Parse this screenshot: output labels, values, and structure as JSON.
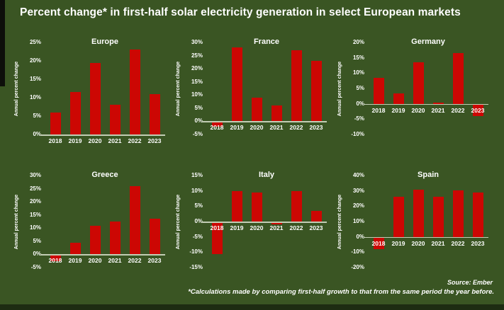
{
  "title": "Percent change* in first-half solar electricity generation in select European markets",
  "footer": {
    "source": "Source: Ember",
    "note": "*Calculations made by comparing first-half growth to that from the same period the year before."
  },
  "colors": {
    "background": "#3a5523",
    "bar": "#cc0703",
    "text": "#ffffff",
    "axis_line": "#c2cdb4"
  },
  "chart_data": {
    "type": "bar",
    "categories": [
      "2018",
      "2019",
      "2020",
      "2021",
      "2022",
      "2023"
    ],
    "ylabel": "Annual percent change",
    "legend": "none",
    "grid": "off",
    "charts": [
      {
        "title": "Europe",
        "ylim": [
          0,
          25
        ],
        "ticks": [
          25,
          20,
          15,
          10,
          5,
          0
        ],
        "values": [
          6,
          11.5,
          19.5,
          8,
          23,
          11
        ]
      },
      {
        "title": "France",
        "ylim": [
          -5,
          30
        ],
        "ticks": [
          30,
          25,
          20,
          15,
          10,
          5,
          0,
          -5
        ],
        "values": [
          -2,
          28,
          9,
          6,
          27,
          23
        ]
      },
      {
        "title": "Germany",
        "ylim": [
          -10,
          20
        ],
        "ticks": [
          20,
          15,
          10,
          5,
          0,
          -5,
          -10
        ],
        "values": [
          8.5,
          3.5,
          13.5,
          0.5,
          16.5,
          -4
        ]
      },
      {
        "title": "Greece",
        "ylim": [
          -5,
          30
        ],
        "ticks": [
          30,
          25,
          20,
          15,
          10,
          5,
          0,
          -5
        ],
        "values": [
          -2.5,
          4.5,
          11,
          12.5,
          26,
          13.5
        ]
      },
      {
        "title": "Italy",
        "ylim": [
          -15,
          15
        ],
        "ticks": [
          15,
          10,
          5,
          0,
          -5,
          -10,
          -15
        ],
        "values": [
          -10.5,
          10,
          9.5,
          -1,
          10,
          3.5
        ]
      },
      {
        "title": "Spain",
        "ylim": [
          -20,
          40
        ],
        "ticks": [
          40,
          30,
          20,
          10,
          0,
          -10,
          -20
        ],
        "values": [
          -8,
          26,
          31,
          26,
          30.5,
          29
        ]
      }
    ]
  }
}
